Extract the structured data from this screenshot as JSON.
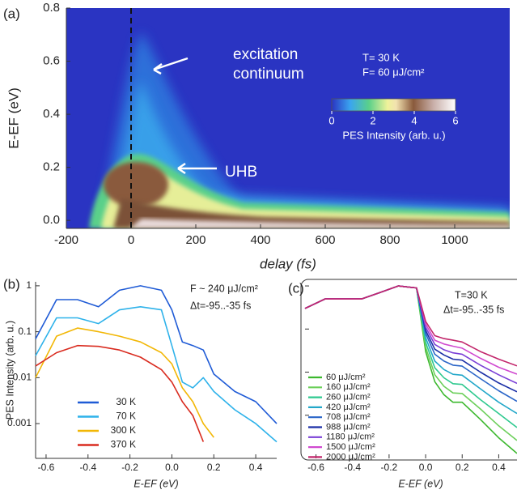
{
  "chart_data": [
    {
      "type": "heatmap",
      "panel_label": "(a)",
      "x_label": "delay (fs)",
      "y_label": "E-EF (eV)",
      "xlim": [
        -200,
        1170
      ],
      "xticks": [
        -200,
        0,
        200,
        400,
        600,
        800,
        1000
      ],
      "ylim": [
        -0.03,
        0.8
      ],
      "yticks": [
        {
          "value": 0,
          "label": "0.0"
        },
        0.2,
        0.4,
        0.6,
        0.8
      ],
      "annotations": [
        "excitation",
        "continuum",
        "UHB"
      ],
      "conditions": [
        "T= 30 K",
        "F= 60 μJ/cm²"
      ],
      "colorbar": {
        "label": "PES Intensity (arb. u.)",
        "lim": [
          0,
          6
        ],
        "ticks": [
          0,
          2,
          4,
          6
        ]
      }
    },
    {
      "type": "line",
      "panel_label": "(b)",
      "log_y": true,
      "legend": "lower left",
      "x_label": "E-EF (eV)",
      "y_label": "PES Intensity (arb. u.)",
      "annotations": [
        "F ~ 240 μJ/cm²",
        "Δt=-95..-35 fs"
      ],
      "xlim": [
        -0.65,
        0.5
      ],
      "xticks": [
        -0.6,
        -0.4,
        -0.2,
        {
          "value": 0,
          "label": "0.0"
        },
        0.2,
        0.4
      ],
      "ylim": [
        0.000175,
        1.22
      ],
      "yticks": [
        0.001,
        0.01,
        0.1,
        1
      ],
      "x": [
        -0.65,
        -0.55,
        -0.45,
        -0.35,
        -0.25,
        -0.15,
        -0.05,
        0,
        0.05,
        0.1,
        0.15,
        0.2,
        0.3,
        0.4,
        0.5
      ],
      "series": [
        {
          "name": "30 K",
          "color": "#1f5bd6",
          "values": [
            0.07,
            0.5,
            0.5,
            0.35,
            0.8,
            1,
            0.8,
            0.3,
            0.06,
            0.05,
            0.04,
            0.012,
            0.005,
            0.003,
            0.001
          ]
        },
        {
          "name": "70 K",
          "color": "#2eb2ea",
          "values": [
            0.03,
            0.2,
            0.2,
            0.15,
            0.3,
            0.35,
            0.3,
            0.05,
            0.008,
            0.006,
            0.01,
            0.005,
            0.002,
            0.001,
            0.0004
          ]
        },
        {
          "name": "300 K",
          "color": "#f2b705",
          "values": [
            0.01,
            0.08,
            0.12,
            0.1,
            0.08,
            0.06,
            0.035,
            0.02,
            0.006,
            0.003,
            0.001,
            0.0005,
            null,
            null,
            null
          ]
        },
        {
          "name": "370 K",
          "color": "#d92b1f",
          "values": [
            0.018,
            0.035,
            0.05,
            0.048,
            0.04,
            0.028,
            0.015,
            0.008,
            0.003,
            0.0015,
            0.0004,
            null,
            null,
            null,
            null
          ]
        }
      ]
    },
    {
      "type": "line",
      "panel_label": "(c)",
      "log_y": true,
      "legend": "left",
      "x_label": "E-EF (eV)",
      "annotations": [
        "T=30 K",
        "Δt=-95..-35 fs"
      ],
      "xlim": [
        -0.66,
        0.5
      ],
      "xticks": [
        -0.6,
        -0.4,
        -0.2,
        {
          "value": 0,
          "label": "0.0"
        },
        0.2,
        0.4
      ],
      "ylim": [
        0.0001,
        1.3
      ],
      "yticks": [
        0.001,
        0.01,
        0.1,
        1
      ],
      "x": [
        -0.66,
        -0.55,
        -0.45,
        -0.35,
        -0.25,
        -0.15,
        -0.05,
        0,
        0.05,
        0.1,
        0.15,
        0.2,
        0.3,
        0.4,
        0.5
      ],
      "series": [
        {
          "name": "60 μJ/cm²",
          "color": "#3cb82e",
          "values": [
            0.3,
            0.5,
            0.5,
            0.5,
            0.7,
            1,
            0.9,
            0.03,
            0.006,
            0.003,
            0.002,
            0.002,
            0.0008,
            0.0003,
            0.00013
          ]
        },
        {
          "name": "160 μJ/cm²",
          "color": "#6ccf5a",
          "values": [
            0.3,
            0.5,
            0.5,
            0.5,
            0.7,
            1,
            0.9,
            0.038,
            0.0087,
            0.0047,
            0.0033,
            0.0032,
            0.0014,
            0.00057,
            0.00026
          ]
        },
        {
          "name": "260 μJ/cm²",
          "color": "#2ec98f",
          "values": [
            0.3,
            0.5,
            0.5,
            0.5,
            0.7,
            1,
            0.9,
            0.049,
            0.0126,
            0.0074,
            0.0054,
            0.0052,
            0.0023,
            0.0011,
            0.00052
          ]
        },
        {
          "name": "420 μJ/cm²",
          "color": "#22a7c9",
          "values": [
            0.3,
            0.5,
            0.5,
            0.5,
            0.7,
            1,
            0.9,
            0.063,
            0.018,
            0.0115,
            0.0089,
            0.0085,
            0.0041,
            0.002,
            0.0011
          ]
        },
        {
          "name": "708 μJ/cm²",
          "color": "#2a65c8",
          "values": [
            0.3,
            0.5,
            0.5,
            0.5,
            0.7,
            1,
            0.9,
            0.079,
            0.026,
            0.018,
            0.0145,
            0.0138,
            0.0071,
            0.0037,
            0.0021
          ]
        },
        {
          "name": "988 μJ/cm²",
          "color": "#1b2fa6",
          "values": [
            0.3,
            0.5,
            0.5,
            0.5,
            0.7,
            1,
            0.9,
            0.093,
            0.034,
            0.025,
            0.02,
            0.019,
            0.01,
            0.0056,
            0.0035
          ]
        },
        {
          "name": "1180 μJ/cm²",
          "color": "#7a3fd6",
          "values": [
            0.3,
            0.5,
            0.5,
            0.5,
            0.7,
            1,
            0.9,
            0.11,
            0.044,
            0.033,
            0.028,
            0.026,
            0.0145,
            0.0087,
            0.0055
          ]
        },
        {
          "name": "1500 μJ/cm²",
          "color": "#d04ad0",
          "values": [
            0.3,
            0.5,
            0.5,
            0.5,
            0.7,
            1,
            0.9,
            0.13,
            0.055,
            0.045,
            0.04,
            0.036,
            0.021,
            0.013,
            0.009
          ]
        },
        {
          "name": "2000 μJ/cm²",
          "color": "#c2266b",
          "values": [
            0.3,
            0.5,
            0.5,
            0.5,
            0.7,
            1,
            0.9,
            0.15,
            0.07,
            0.06,
            0.055,
            0.05,
            0.03,
            0.02,
            0.014
          ]
        }
      ]
    }
  ]
}
